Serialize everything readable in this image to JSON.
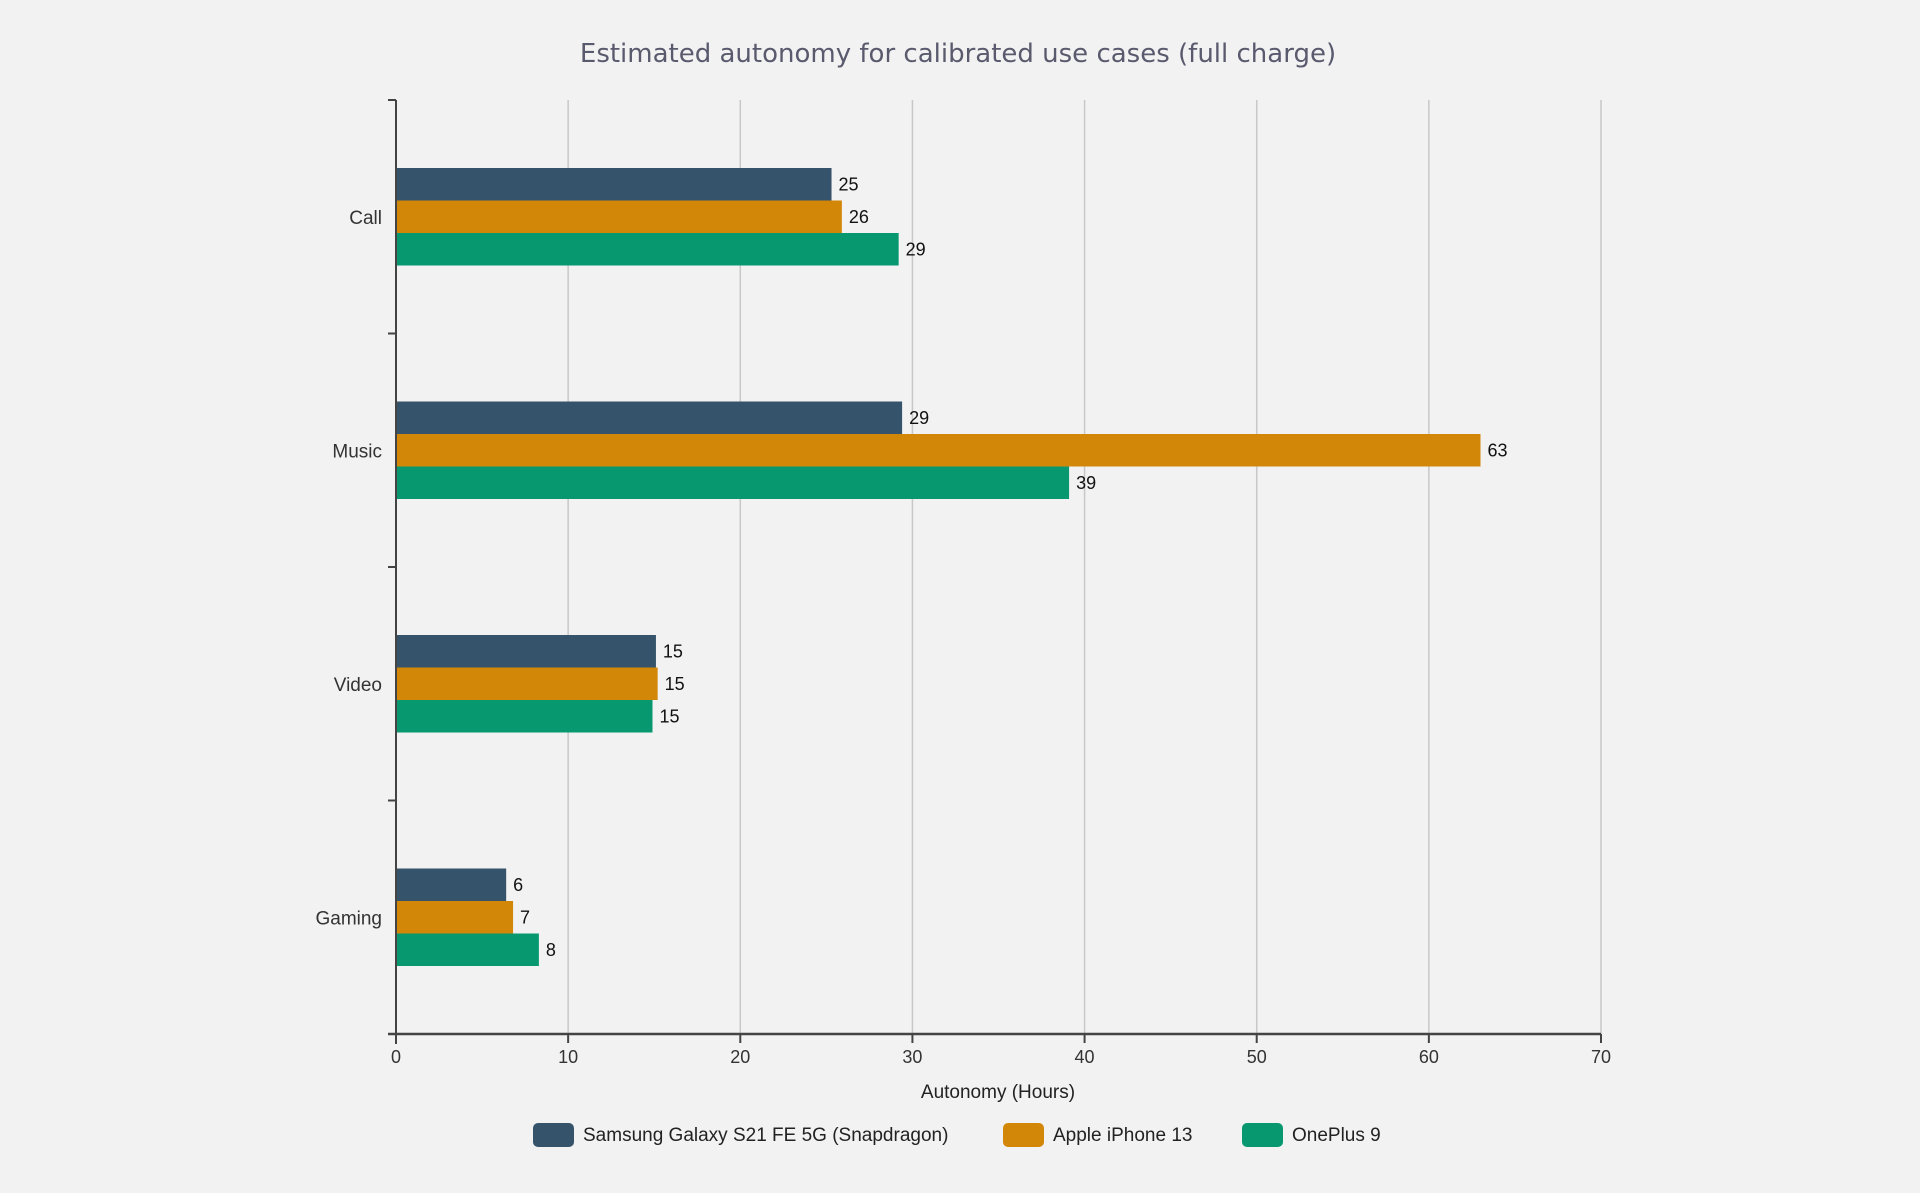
{
  "chart_data": {
    "type": "bar",
    "orientation": "horizontal",
    "title": "Estimated autonomy for calibrated use cases (full charge)",
    "xlabel": "Autonomy (Hours)",
    "ylabel": "",
    "xlim": [
      0,
      70
    ],
    "x_ticks": [
      0,
      10,
      20,
      30,
      40,
      50,
      60,
      70
    ],
    "grid": "vertical",
    "legend_position": "bottom-center",
    "categories": [
      "Call",
      "Music",
      "Video",
      "Gaming"
    ],
    "series": [
      {
        "name": "Samsung Galaxy S21 FE 5G (Snapdragon)",
        "color": "#35536a",
        "values": [
          25.3,
          29.4,
          15.1,
          6.4
        ],
        "labels": [
          "25",
          "29",
          "15",
          "6"
        ]
      },
      {
        "name": "Apple iPhone 13",
        "color": "#d38708",
        "values": [
          25.9,
          63.0,
          15.2,
          6.8
        ],
        "labels": [
          "26",
          "63",
          "15",
          "7"
        ]
      },
      {
        "name": "OnePlus 9",
        "color": "#079870",
        "values": [
          29.2,
          39.1,
          14.9,
          8.3
        ],
        "labels": [
          "29",
          "39",
          "15",
          "8"
        ]
      }
    ]
  },
  "colors": {
    "background": "#f2f2f2",
    "grid": "#c8c8c8",
    "axis": "#444444",
    "title": "#5a5a6e"
  }
}
